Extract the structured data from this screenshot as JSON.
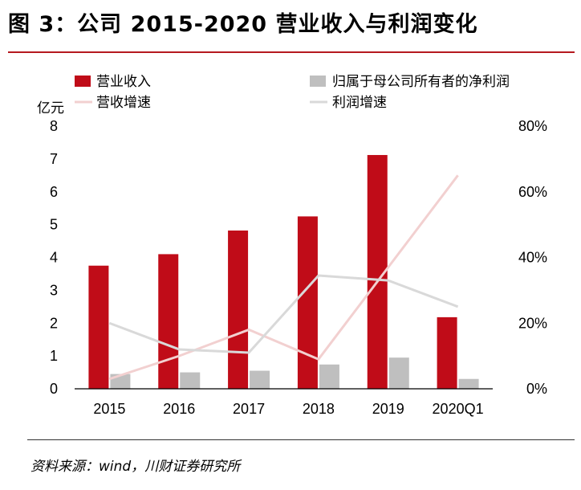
{
  "header": {
    "title": "图 3：公司 2015-2020 营业收入与利润变化"
  },
  "footer": {
    "source": "资料来源：wind，川财证券研究所"
  },
  "chart_data": {
    "type": "bar",
    "categories": [
      "2015",
      "2016",
      "2017",
      "2018",
      "2019",
      "2020Q1"
    ],
    "left_axis": {
      "label": "亿元",
      "range": [
        0,
        8
      ],
      "ticks": [
        "0",
        "1",
        "2",
        "3",
        "4",
        "5",
        "6",
        "7",
        "8"
      ]
    },
    "right_axis": {
      "range": [
        0,
        80
      ],
      "ticks": [
        "0%",
        "20%",
        "40%",
        "60%",
        "80%"
      ]
    },
    "series": [
      {
        "name": "营业收入",
        "kind": "bar",
        "axis": "left",
        "color": "#c00c18",
        "values": [
          3.75,
          4.1,
          4.82,
          5.25,
          7.12,
          2.18
        ]
      },
      {
        "name": "归属于母公司所有者的净利润",
        "kind": "bar",
        "axis": "left",
        "color": "#bfbfbf",
        "values": [
          0.45,
          0.5,
          0.55,
          0.74,
          0.95,
          0.3
        ]
      },
      {
        "name": "营收增速",
        "kind": "line",
        "axis": "right",
        "color": "#f2d0d0",
        "values": [
          3,
          10,
          18,
          9,
          37,
          65
        ]
      },
      {
        "name": "利润增速",
        "kind": "line",
        "axis": "right",
        "color": "#d9d9d9",
        "values": [
          20,
          12,
          11,
          34.5,
          33,
          25
        ]
      }
    ],
    "legend_position": "top",
    "grid": false
  }
}
